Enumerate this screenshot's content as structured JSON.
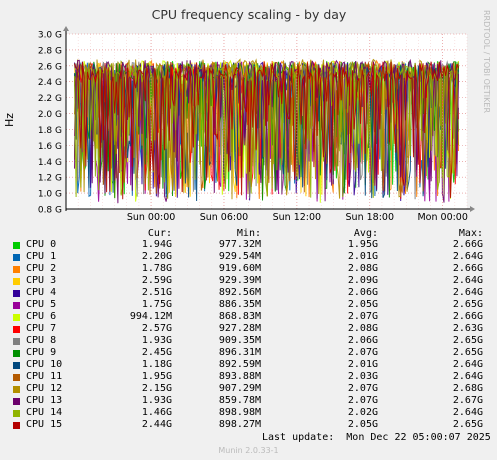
{
  "chart_data": {
    "type": "line",
    "title": "CPU frequency scaling - by day",
    "ylabel": "Hz",
    "ylim": [
      0.8,
      3.0
    ],
    "yticks": [
      "0.8 G",
      "1.0 G",
      "1.2 G",
      "1.4 G",
      "1.6 G",
      "1.8 G",
      "2.0 G",
      "2.2 G",
      "2.4 G",
      "2.6 G",
      "2.8 G",
      "3.0 G"
    ],
    "ytick_values": [
      0.8,
      1.0,
      1.2,
      1.4,
      1.6,
      1.8,
      2.0,
      2.2,
      2.4,
      2.6,
      2.8,
      3.0
    ],
    "xticks": [
      "Sun 00:00",
      "Sun 06:00",
      "Sun 12:00",
      "Sun 18:00",
      "Mon 00:00"
    ],
    "xtick_hours": [
      7.0,
      13.0,
      19.0,
      25.0,
      31.0
    ],
    "xrange_hours": [
      0,
      33.0
    ],
    "grid": true,
    "side_label": "RRDTOOL / TOBI OETIKER",
    "columns": {
      "cur": "Cur:",
      "min": "Min:",
      "avg": "Avg:",
      "max": "Max:"
    },
    "series": [
      {
        "name": "CPU 0",
        "color": "#00cc00",
        "cur": "1.94G",
        "min": "977.32M",
        "avg": "1.95G",
        "max": "2.66G"
      },
      {
        "name": "CPU 1",
        "color": "#0066b3",
        "cur": "2.20G",
        "min": "929.54M",
        "avg": "2.01G",
        "max": "2.64G"
      },
      {
        "name": "CPU 2",
        "color": "#ff8000",
        "cur": "1.78G",
        "min": "919.60M",
        "avg": "2.08G",
        "max": "2.66G"
      },
      {
        "name": "CPU 3",
        "color": "#ffcc00",
        "cur": "2.59G",
        "min": "929.39M",
        "avg": "2.09G",
        "max": "2.64G"
      },
      {
        "name": "CPU 4",
        "color": "#330099",
        "cur": "2.51G",
        "min": "892.56M",
        "avg": "2.06G",
        "max": "2.64G"
      },
      {
        "name": "CPU 5",
        "color": "#990099",
        "cur": "1.75G",
        "min": "886.35M",
        "avg": "2.05G",
        "max": "2.65G"
      },
      {
        "name": "CPU 6",
        "color": "#ccff00",
        "cur": "994.12M",
        "min": "868.83M",
        "avg": "2.07G",
        "max": "2.66G"
      },
      {
        "name": "CPU 7",
        "color": "#ff0000",
        "cur": "2.57G",
        "min": "927.28M",
        "avg": "2.08G",
        "max": "2.63G"
      },
      {
        "name": "CPU 8",
        "color": "#808080",
        "cur": "1.93G",
        "min": "909.35M",
        "avg": "2.06G",
        "max": "2.65G"
      },
      {
        "name": "CPU 9",
        "color": "#008f00",
        "cur": "2.45G",
        "min": "896.31M",
        "avg": "2.07G",
        "max": "2.65G"
      },
      {
        "name": "CPU 10",
        "color": "#00487d",
        "cur": "1.18G",
        "min": "892.59M",
        "avg": "2.01G",
        "max": "2.64G"
      },
      {
        "name": "CPU 11",
        "color": "#b35a00",
        "cur": "1.95G",
        "min": "893.88M",
        "avg": "2.03G",
        "max": "2.64G"
      },
      {
        "name": "CPU 12",
        "color": "#b38f00",
        "cur": "2.15G",
        "min": "907.29M",
        "avg": "2.07G",
        "max": "2.68G"
      },
      {
        "name": "CPU 13",
        "color": "#6b006b",
        "cur": "1.93G",
        "min": "859.78M",
        "avg": "2.07G",
        "max": "2.67G"
      },
      {
        "name": "CPU 14",
        "color": "#8fb300",
        "cur": "1.46G",
        "min": "898.98M",
        "avg": "2.02G",
        "max": "2.64G"
      },
      {
        "name": "CPU 15",
        "color": "#b30000",
        "cur": "2.44G",
        "min": "898.27M",
        "avg": "2.05G",
        "max": "2.65G"
      }
    ]
  },
  "footer": {
    "last_update": "Last update:  Mon Dec 22 05:00:07 2025",
    "munin": "Munin 2.0.33-1"
  }
}
